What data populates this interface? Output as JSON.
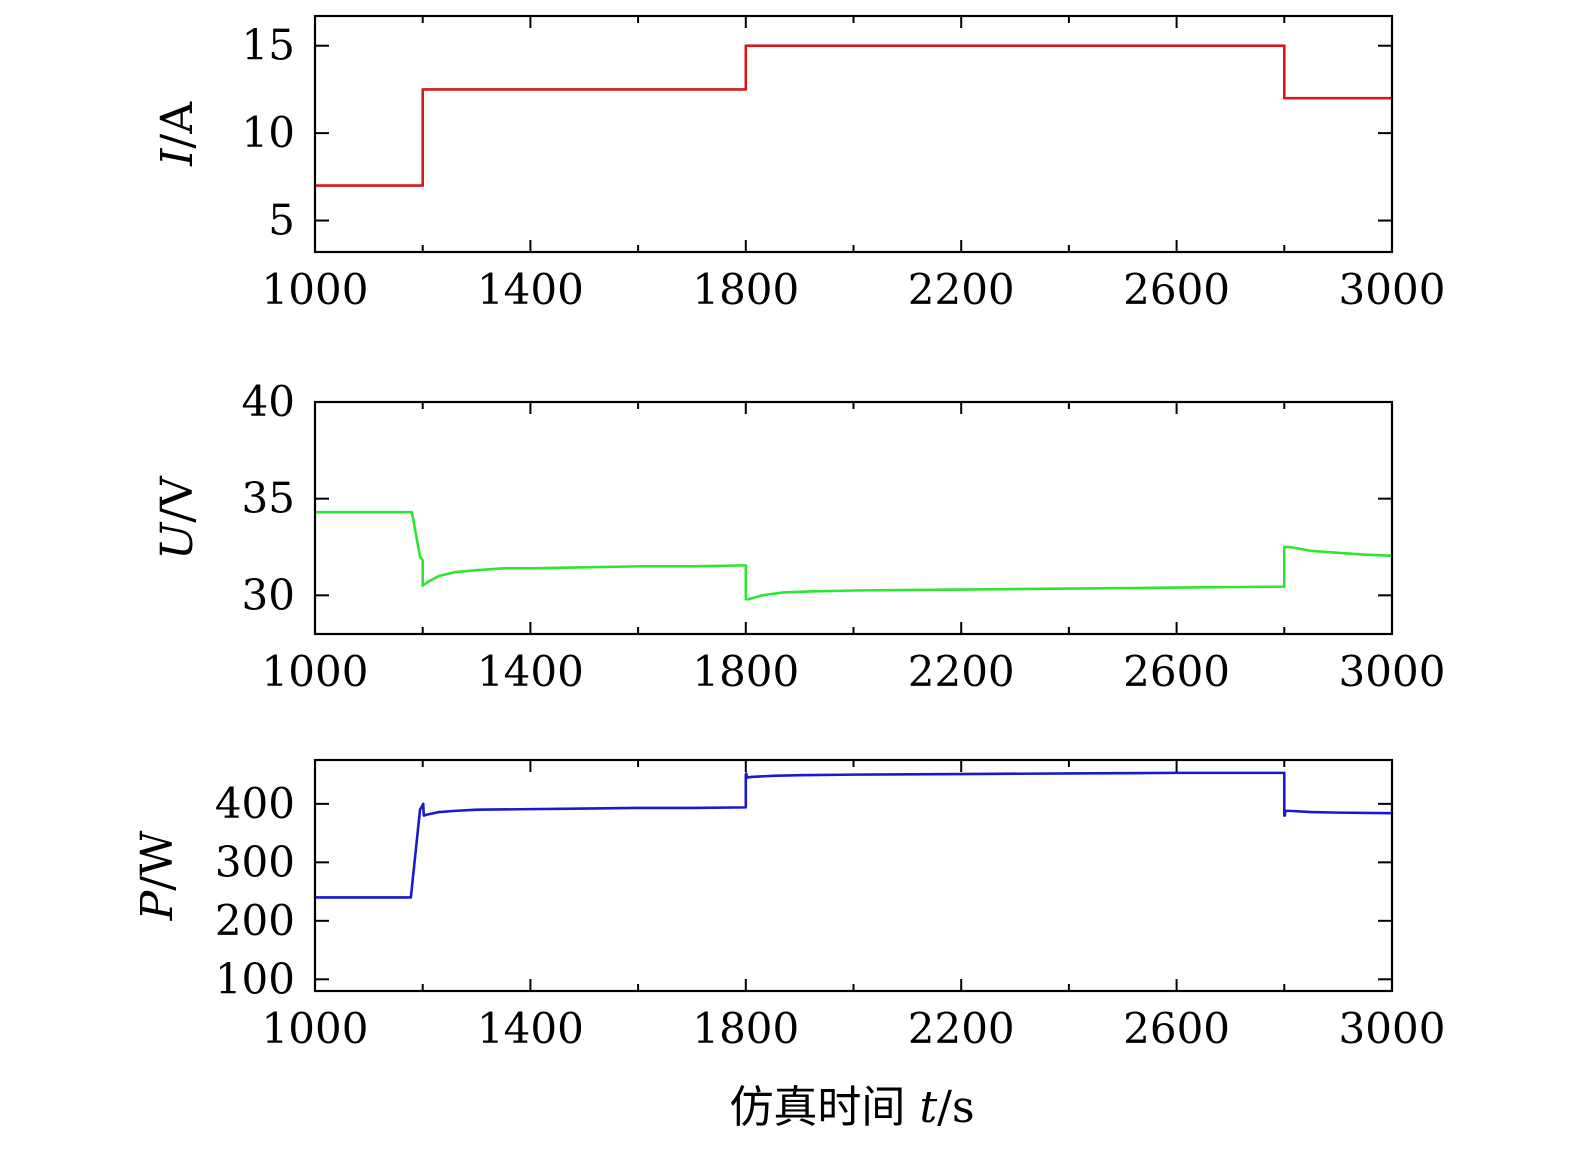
{
  "chart_data": [
    {
      "type": "line",
      "ylabel": {
        "var": "I",
        "unit": "A"
      },
      "xlim": [
        1000,
        3000
      ],
      "ylim": [
        3.2,
        16.7
      ],
      "xticks": [
        1000,
        1400,
        1800,
        2200,
        2600,
        3000
      ],
      "xminor": [
        1200,
        1600,
        2000,
        2400,
        2800
      ],
      "yticks": [
        5,
        10,
        15
      ],
      "color": "#d7191c",
      "grid": false,
      "series": [
        {
          "x": [
            1000,
            1200,
            1200,
            1800,
            1800,
            2800,
            2800,
            3000
          ],
          "y": [
            7.0,
            7.0,
            12.5,
            12.5,
            15.0,
            15.0,
            12.0,
            12.0
          ]
        }
      ]
    },
    {
      "type": "line",
      "ylabel": {
        "var": "U",
        "unit": "V"
      },
      "xlim": [
        1000,
        3000
      ],
      "ylim": [
        28.0,
        40.0
      ],
      "xticks": [
        1000,
        1400,
        1800,
        2200,
        2600,
        3000
      ],
      "xminor": [
        1200,
        1600,
        2000,
        2400,
        2800
      ],
      "yticks": [
        30,
        35,
        40
      ],
      "color": "#2fe52f",
      "grid": false,
      "series": [
        {
          "x": [
            1000,
            1180,
            1195,
            1200,
            1200,
            1210,
            1230,
            1260,
            1300,
            1350,
            1400,
            1500,
            1600,
            1700,
            1800,
            1800,
            1805,
            1830,
            1870,
            1920,
            2000,
            2200,
            2400,
            2600,
            2800,
            2800,
            2810,
            2850,
            2900,
            2950,
            3000
          ],
          "y": [
            34.3,
            34.3,
            32.0,
            31.8,
            30.5,
            30.7,
            31.0,
            31.2,
            31.3,
            31.4,
            31.4,
            31.45,
            31.5,
            31.5,
            31.55,
            29.8,
            29.8,
            30.0,
            30.15,
            30.2,
            30.25,
            30.3,
            30.35,
            30.4,
            30.45,
            32.5,
            32.5,
            32.3,
            32.2,
            32.1,
            32.05
          ]
        }
      ]
    },
    {
      "type": "line",
      "ylabel": {
        "var": "P",
        "unit": "W"
      },
      "xlim": [
        1000,
        3000
      ],
      "ylim": [
        80,
        475
      ],
      "xticks": [
        1000,
        1400,
        1800,
        2200,
        2600,
        3000
      ],
      "xminor": [
        1200,
        1600,
        2000,
        2400,
        2800
      ],
      "yticks": [
        100,
        200,
        300,
        400
      ],
      "color": "#1a1acc",
      "grid": false,
      "series": [
        {
          "x": [
            1000,
            1178,
            1195,
            1200,
            1201,
            1202,
            1210,
            1230,
            1260,
            1300,
            1400,
            1500,
            1600,
            1700,
            1800,
            1800,
            1801,
            1802,
            1810,
            1850,
            1900,
            2000,
            2200,
            2400,
            2600,
            2800,
            2800,
            2801,
            2802,
            2810,
            2850,
            2900,
            3000
          ],
          "y": [
            240,
            240,
            390,
            398,
            400,
            380,
            382,
            386,
            388,
            390,
            391,
            392,
            393,
            393,
            394,
            450,
            452,
            445,
            446,
            448,
            449,
            450,
            451,
            452,
            453,
            453,
            380,
            380,
            388,
            388,
            386,
            385,
            384
          ]
        }
      ]
    }
  ],
  "xlabel": {
    "prefix": "仿真时间",
    "var": "t",
    "unit": "s"
  }
}
